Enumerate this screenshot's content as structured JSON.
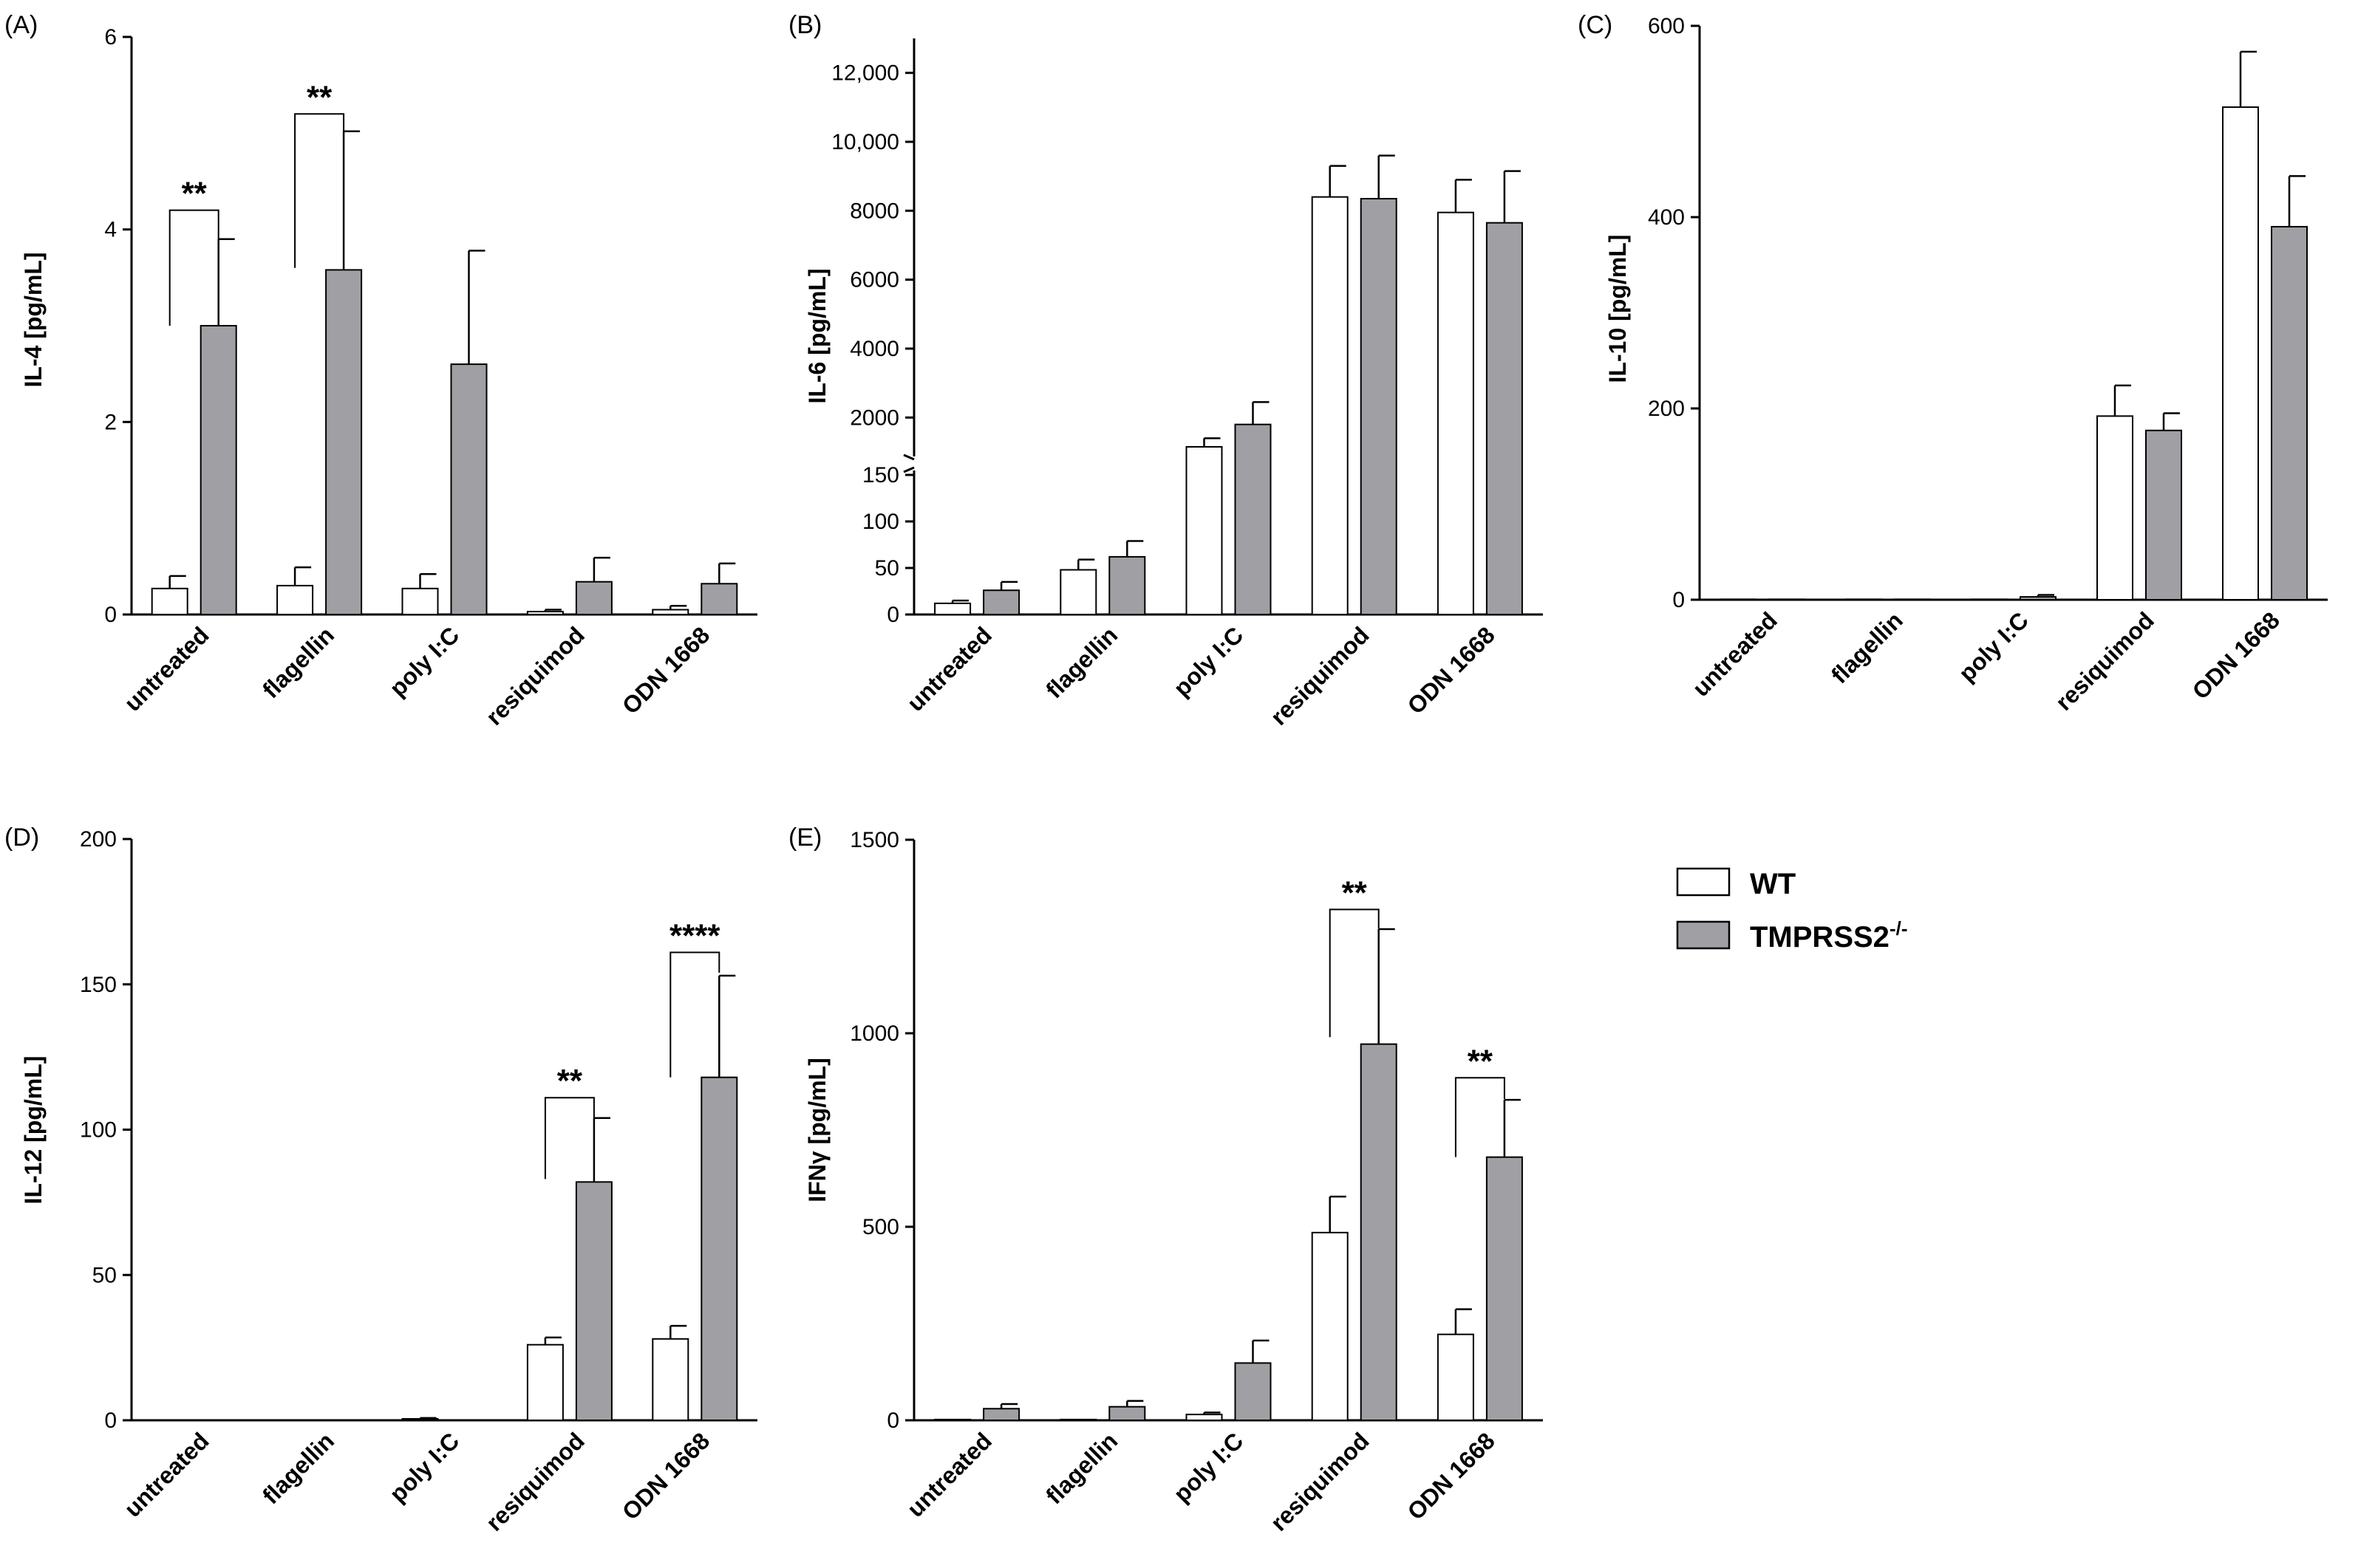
{
  "legend": {
    "wt_label": "WT",
    "ko_label": "TMPRSS2",
    "ko_superscript": "-/-"
  },
  "colors": {
    "wt_fill": "#ffffff",
    "ko_fill": "#a0a0a4",
    "stroke": "#000000"
  },
  "chart_data": [
    {
      "id": "A",
      "panel_label": "(A)",
      "type": "bar",
      "ylabel": "IL-4 [pg/mL]",
      "categories": [
        "untreated",
        "flagellin",
        "poly I:C",
        "resiquimod",
        "ODN 1668"
      ],
      "ylim": [
        0,
        6
      ],
      "ticks": [
        0,
        2,
        4,
        6
      ],
      "tick_labels": [
        "0",
        "2",
        "4",
        "6"
      ],
      "series": [
        {
          "name": "WT",
          "values": [
            0.27,
            0.3,
            0.27,
            0.03,
            0.05
          ],
          "errors": [
            0.13,
            0.19,
            0.15,
            0.02,
            0.04
          ]
        },
        {
          "name": "TMPRSS2-/-",
          "values": [
            3.0,
            3.58,
            2.6,
            0.34,
            0.32
          ],
          "errors": [
            0.9,
            1.44,
            1.18,
            0.25,
            0.21
          ]
        }
      ],
      "significance": [
        {
          "category": 0,
          "label": "**",
          "from": 3.0,
          "to": 3.9,
          "top": 4.2
        },
        {
          "category": 1,
          "label": "**",
          "from": 3.6,
          "to": 5.0,
          "top": 5.2
        }
      ]
    },
    {
      "id": "B",
      "panel_label": "(B)",
      "type": "bar",
      "ylabel": "IL-6 [pg/mL]",
      "categories": [
        "untreated",
        "flagellin",
        "poly I:C",
        "resiquimod",
        "ODN 1668"
      ],
      "broken_axis": {
        "lower": [
          0,
          150
        ],
        "upper": [
          1000,
          13000
        ]
      },
      "ticks_lower": [
        0,
        50,
        100,
        150
      ],
      "tick_labels_lower": [
        "0",
        "50",
        "100",
        "150"
      ],
      "ticks_upper": [
        2000,
        4000,
        6000,
        8000,
        10000,
        12000
      ],
      "tick_labels_upper": [
        "2000",
        "4000",
        "6000",
        "8000",
        "10,000",
        "12,000"
      ],
      "series": [
        {
          "name": "WT",
          "values": [
            12,
            48,
            1150,
            8400,
            7950
          ],
          "errors": [
            3,
            11,
            250,
            900,
            950
          ]
        },
        {
          "name": "TMPRSS2-/-",
          "values": [
            26,
            62,
            1800,
            8350,
            7650
          ],
          "errors": [
            9,
            17,
            650,
            1250,
            1500
          ]
        }
      ],
      "significance": []
    },
    {
      "id": "C",
      "panel_label": "(C)",
      "type": "bar",
      "ylabel": "IL-10 [pg/mL]",
      "categories": [
        "untreated",
        "flagellin",
        "poly I:C",
        "resiquimod",
        "ODN 1668"
      ],
      "ylim": [
        0,
        600
      ],
      "ticks": [
        0,
        200,
        400,
        600
      ],
      "tick_labels": [
        "0",
        "200",
        "400",
        "600"
      ],
      "series": [
        {
          "name": "WT",
          "values": [
            0.5,
            0.5,
            0.5,
            192,
            515
          ],
          "errors": [
            0,
            0,
            0,
            32,
            58
          ]
        },
        {
          "name": "TMPRSS2-/-",
          "values": [
            0.5,
            0.5,
            3,
            177,
            390
          ],
          "errors": [
            0,
            0,
            2,
            18,
            53
          ]
        }
      ],
      "significance": []
    },
    {
      "id": "D",
      "panel_label": "(D)",
      "type": "bar",
      "ylabel": "IL-12 [pg/mL]",
      "categories": [
        "untreated",
        "flagellin",
        "poly I:C",
        "resiquimod",
        "ODN 1668"
      ],
      "ylim": [
        0,
        200
      ],
      "ticks": [
        0,
        50,
        100,
        150,
        200
      ],
      "tick_labels": [
        "0",
        "50",
        "100",
        "150",
        "200"
      ],
      "series": [
        {
          "name": "WT",
          "values": [
            0.1,
            0.1,
            0.5,
            26,
            28
          ],
          "errors": [
            0,
            0,
            0.3,
            2.5,
            4.5
          ]
        },
        {
          "name": "TMPRSS2-/-",
          "values": [
            0.1,
            0.1,
            0.1,
            82,
            118
          ],
          "errors": [
            0,
            0,
            0,
            22,
            35
          ]
        }
      ],
      "significance": [
        {
          "category": 3,
          "label": "**",
          "from": 83,
          "to": 104,
          "top": 111
        },
        {
          "category": 4,
          "label": "****",
          "from": 118,
          "to": 154,
          "top": 161
        }
      ]
    },
    {
      "id": "E",
      "panel_label": "(E)",
      "type": "bar",
      "ylabel": "IFNγ [pg/mL]",
      "categories": [
        "untreated",
        "flagellin",
        "poly I:C",
        "resiquimod",
        "ODN 1668"
      ],
      "ylim": [
        0,
        1500
      ],
      "ticks": [
        0,
        500,
        1000,
        1500
      ],
      "tick_labels": [
        "0",
        "500",
        "1000",
        "1500"
      ],
      "series": [
        {
          "name": "WT",
          "values": [
            2,
            2,
            15,
            485,
            222
          ],
          "errors": [
            0,
            0,
            5,
            93,
            65
          ]
        },
        {
          "name": "TMPRSS2-/-",
          "values": [
            30,
            35,
            148,
            972,
            680
          ],
          "errors": [
            12,
            15,
            58,
            297,
            148
          ]
        }
      ],
      "significance": [
        {
          "category": 3,
          "label": "**",
          "from": 990,
          "to": 1270,
          "top": 1320
        },
        {
          "category": 4,
          "label": "**",
          "from": 680,
          "to": 830,
          "top": 885
        }
      ]
    }
  ]
}
